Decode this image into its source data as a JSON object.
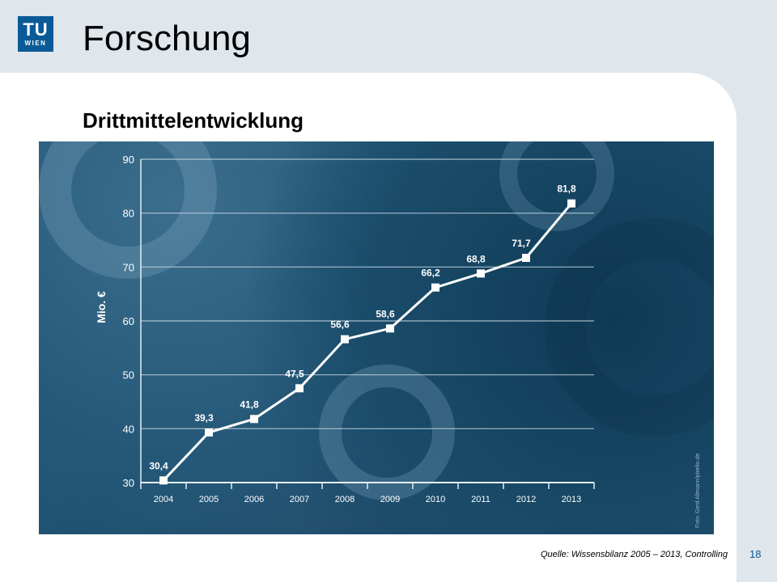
{
  "header": {
    "logo_top": "TU",
    "logo_bottom": "WIEN",
    "title": "Forschung"
  },
  "subtitle": "Drittmittelentwicklung",
  "footer": {
    "source": "Quelle: Wissensbilanz 2005 – 2013, Controlling",
    "page_number": "18"
  },
  "photo_credit": "Foto: Gerd Altmann/pixelio.de",
  "colors": {
    "brand": "#0a5a98",
    "line": "#ffffff"
  },
  "chart_data": {
    "type": "line",
    "title": "",
    "xlabel": "",
    "ylabel": "Mio. €",
    "categories": [
      "2004",
      "2005",
      "2006",
      "2007",
      "2008",
      "2009",
      "2010",
      "2011",
      "2012",
      "2013"
    ],
    "series": [
      {
        "values": [
          30.4,
          39.3,
          41.8,
          47.5,
          56.6,
          58.6,
          66.2,
          68.8,
          71.7,
          81.8
        ],
        "labels": [
          "30,4",
          "39,3",
          "41,8",
          "47,5",
          "56,6",
          "58,6",
          "66,2",
          "68,8",
          "71,7",
          "81,8"
        ]
      }
    ],
    "ylim": [
      30,
      90
    ],
    "yticks": [
      30,
      40,
      50,
      60,
      70,
      80,
      90
    ],
    "grid": true,
    "legend": "none"
  }
}
